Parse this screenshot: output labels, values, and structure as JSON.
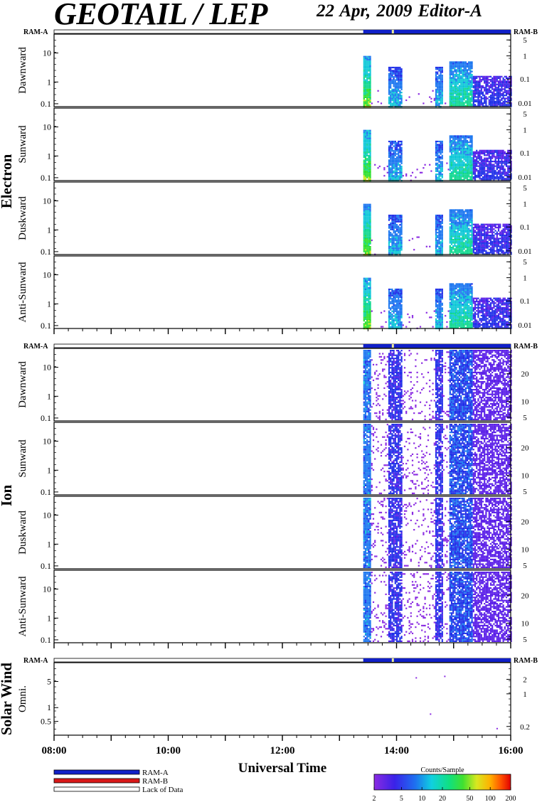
{
  "header": {
    "title": "GEOTAIL / LEP",
    "date_editor": "22 Apr, 2009   Editor-A"
  },
  "ram_labels": {
    "left": "RAM-A",
    "right": "RAM-B"
  },
  "groups": [
    {
      "name": "Electron",
      "panels": [
        "Dawnward",
        "Sunward",
        "Duskward",
        "Anti-Sunward"
      ]
    },
    {
      "name": "Ion",
      "panels": [
        "Dawnward",
        "Sunward",
        "Duskward",
        "Anti-Sunward"
      ]
    },
    {
      "name": "Solar Wind",
      "panels": [
        "Omni."
      ]
    }
  ],
  "x_axis": {
    "label": "Universal Time",
    "ticks": [
      "08:00",
      "10:00",
      "12:00",
      "14:00",
      "16:00"
    ]
  },
  "legend": {
    "items": [
      {
        "label": "RAM-A",
        "color": "#1020c8"
      },
      {
        "label": "RAM-B",
        "color": "#d81818"
      },
      {
        "label": "Lack of Data",
        "color": "#ffffff"
      }
    ]
  },
  "colorbar": {
    "title": "Counts/Sample",
    "ticks": [
      "2",
      "5",
      "10",
      "20",
      "50",
      "100",
      "200"
    ]
  },
  "chart_data": {
    "type": "heatmap",
    "title": "GEOTAIL / LEP",
    "xlabel": "Universal Time",
    "x_range": [
      "08:00",
      "16:00"
    ],
    "data_start": "13:25",
    "scale": "log",
    "electron": {
      "y_ticks_left": [
        "10",
        "1",
        "0.1"
      ],
      "y_ticks_right": [
        "5",
        "1",
        "0.1",
        "0.01"
      ],
      "panels": [
        "Dawnward",
        "Sunward",
        "Duskward",
        "Anti-Sunward"
      ]
    },
    "ion": {
      "y_ticks_left": [
        "10",
        "1",
        "0.1"
      ],
      "y_ticks_right": [
        "20",
        "10",
        "5"
      ],
      "panels": [
        "Dawnward",
        "Sunward",
        "Duskward",
        "Anti-Sunward"
      ]
    },
    "solar_wind": {
      "y_ticks_left": [
        "5",
        "1",
        "0.5"
      ],
      "y_ticks_right": [
        "2",
        "1",
        "0.2"
      ],
      "panels": [
        "Omni."
      ]
    },
    "activity_intervals": [
      {
        "start": "13:25",
        "end": "13:32",
        "level": 0.9
      },
      {
        "start": "13:50",
        "end": "14:05",
        "level": 0.6
      },
      {
        "start": "14:40",
        "end": "14:48",
        "level": 0.6
      },
      {
        "start": "14:55",
        "end": "15:20",
        "level": 0.75
      },
      {
        "start": "15:20",
        "end": "16:00",
        "level": 0.35
      }
    ],
    "colorbar_range": [
      2,
      200
    ]
  }
}
